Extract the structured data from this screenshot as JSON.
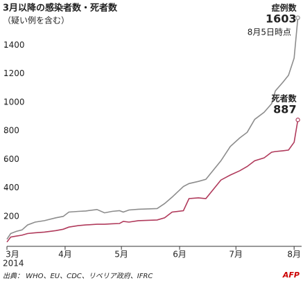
{
  "chart_data": {
    "type": "line",
    "title": "3月以降の感染者数・死者数",
    "subtitle": "（疑い例を含む）",
    "x_sublabel": "2014",
    "source": "出典： WHO、EU、CDC、リベリア政府、IFRC",
    "logo": "AFP",
    "annotations": [
      "8月5日時点"
    ],
    "x": [
      0,
      2,
      5,
      8,
      11,
      15,
      20,
      26,
      30,
      33,
      38,
      42,
      48,
      52,
      56,
      60,
      62,
      65,
      70,
      80,
      84,
      88,
      94,
      97,
      102,
      106,
      114,
      119,
      124,
      128,
      132,
      137,
      141,
      143,
      147,
      150,
      153,
      155
    ],
    "series": [
      {
        "name": "症例数",
        "color": "#8c8c8c",
        "values": [
          50,
          90,
          105,
          115,
          150,
          170,
          180,
          200,
          210,
          240,
          245,
          248,
          258,
          235,
          245,
          250,
          240,
          255,
          260,
          265,
          300,
          345,
          420,
          440,
          455,
          470,
          600,
          700,
          760,
          800,
          890,
          940,
          1000,
          1090,
          1150,
          1200,
          1320,
          1603
        ]
      },
      {
        "name": "死者数",
        "color": "#b03a5b",
        "values": [
          30,
          65,
          72,
          78,
          90,
          95,
          100,
          110,
          120,
          135,
          145,
          150,
          155,
          155,
          158,
          160,
          175,
          170,
          180,
          185,
          200,
          240,
          250,
          335,
          340,
          335,
          465,
          500,
          530,
          560,
          600,
          620,
          660,
          665,
          670,
          675,
          730,
          887
        ]
      }
    ],
    "xlim": [
      0,
      157
    ],
    "xticks": [
      {
        "value": 0,
        "label": "3月"
      },
      {
        "value": 31,
        "label": "4月"
      },
      {
        "value": 61,
        "label": "5月"
      },
      {
        "value": 92,
        "label": "6月"
      },
      {
        "value": 122,
        "label": "7月"
      },
      {
        "value": 153,
        "label": "8月"
      }
    ],
    "ylim": [
      0,
      1650
    ],
    "yticks": [
      200,
      400,
      600,
      800,
      1000,
      1200,
      1400
    ]
  }
}
